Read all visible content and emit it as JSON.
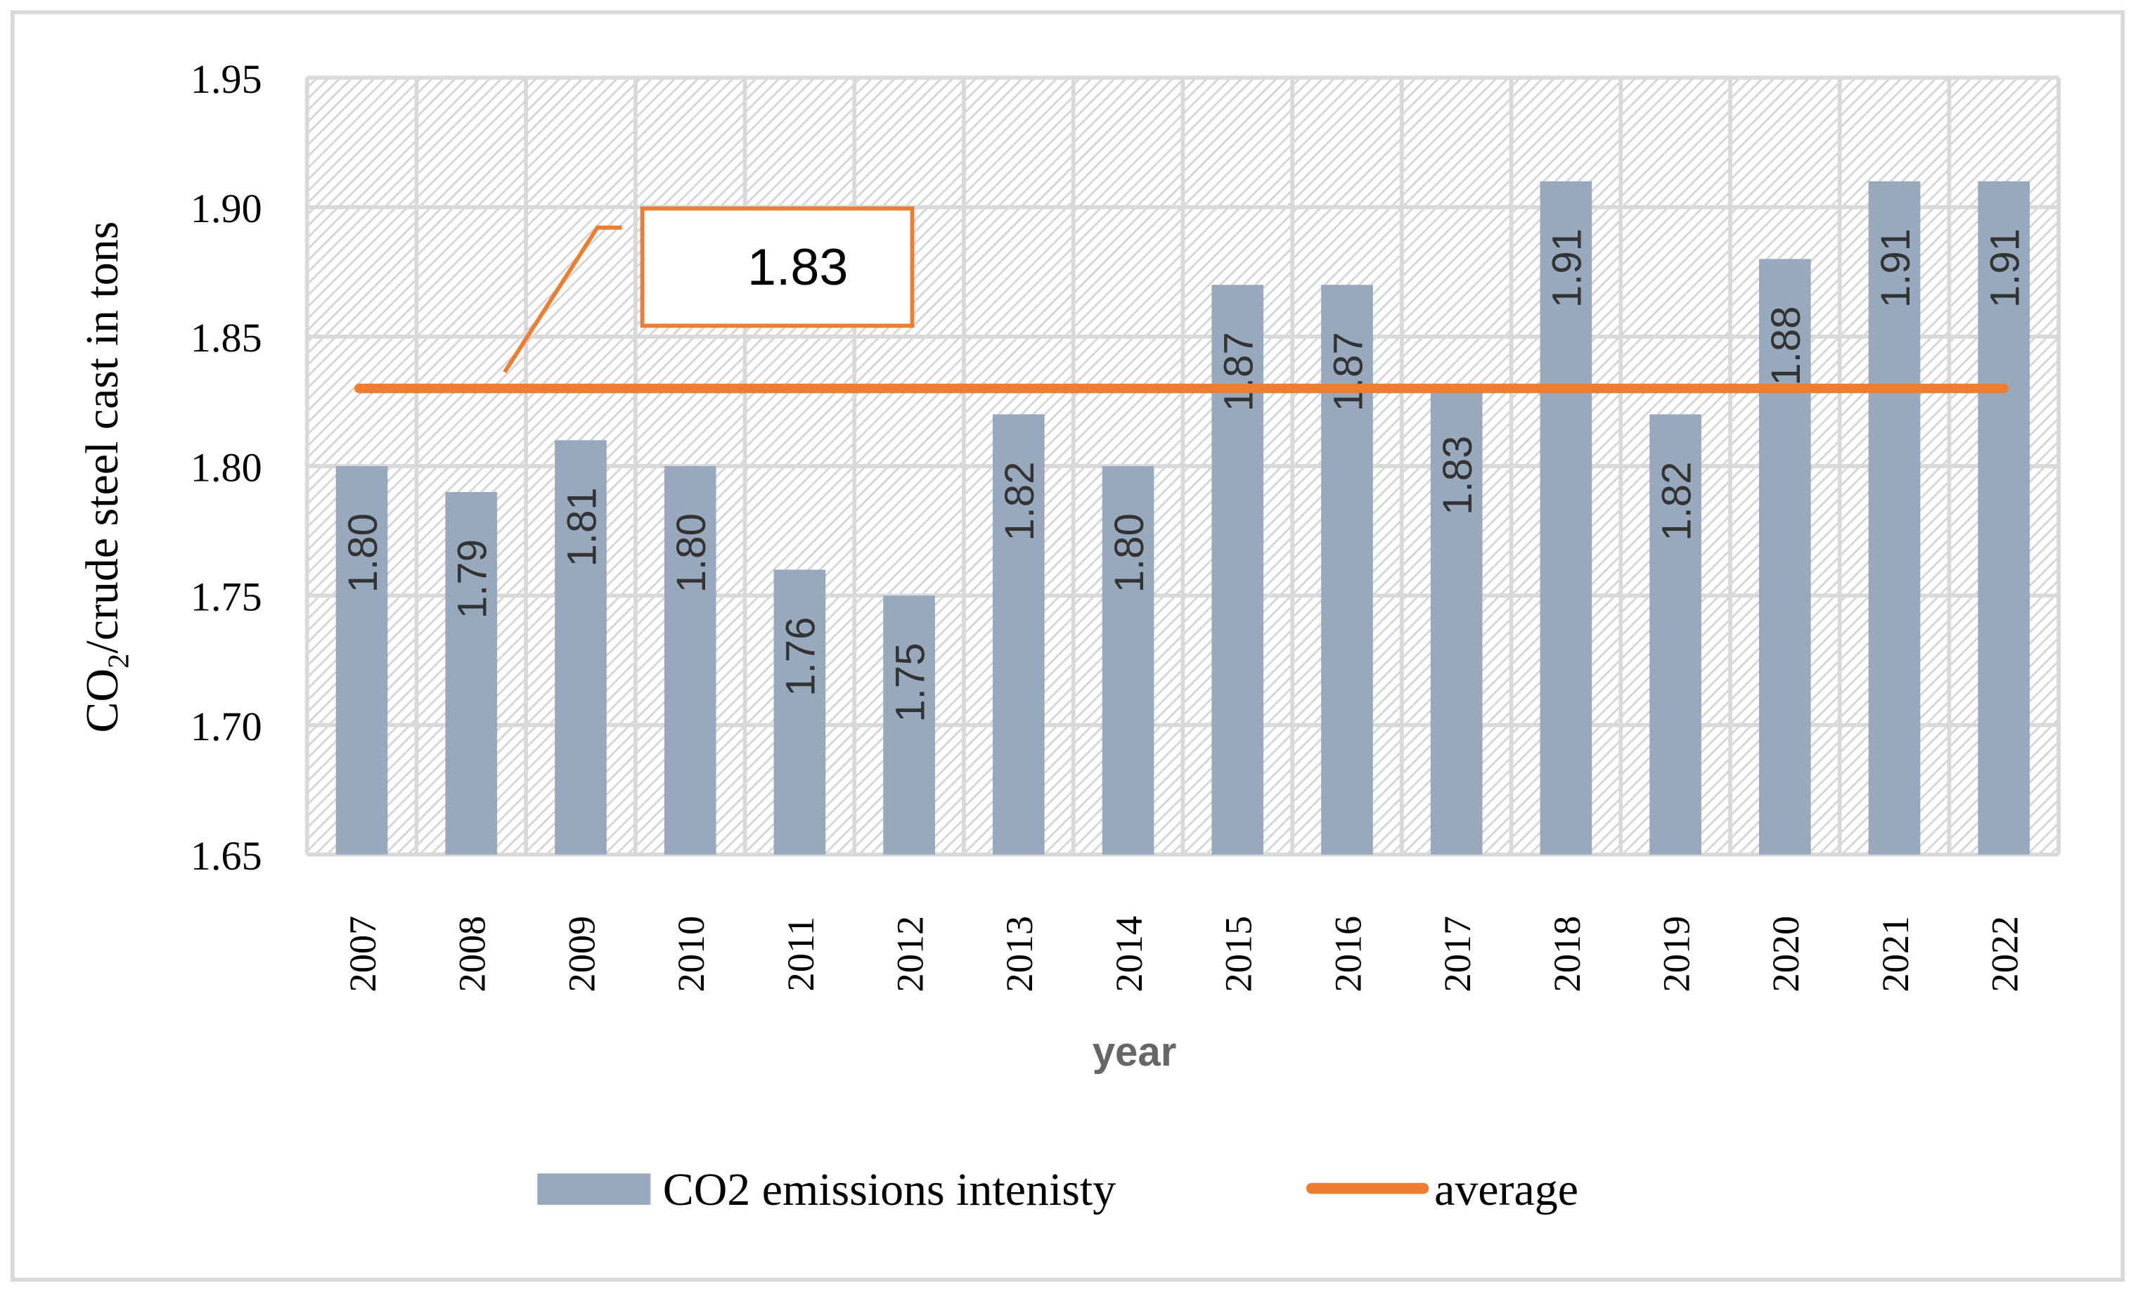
{
  "chart_data": {
    "type": "bar",
    "title": "",
    "xlabel": "year",
    "ylabel_main": "CO",
    "ylabel_sub": "2",
    "ylabel_rest": "/crude steel cast in tons",
    "ylim": [
      1.65,
      1.95
    ],
    "yticks": [
      "1.65",
      "1.70",
      "1.75",
      "1.80",
      "1.85",
      "1.90",
      "1.95"
    ],
    "grid": true,
    "legend_position": "bottom",
    "categories": [
      "2007",
      "2008",
      "2009",
      "2010",
      "2011",
      "2012",
      "2013",
      "2014",
      "2015",
      "2016",
      "2017",
      "2018",
      "2019",
      "2020",
      "2021",
      "2022"
    ],
    "series": [
      {
        "name": "CO2 emissions intenisty",
        "type": "bar",
        "color": "#98a9be",
        "values": [
          1.8,
          1.79,
          1.81,
          1.8,
          1.76,
          1.75,
          1.82,
          1.8,
          1.87,
          1.87,
          1.83,
          1.91,
          1.82,
          1.88,
          1.91,
          1.91
        ],
        "labels": [
          "1.80",
          "1.79",
          "1.81",
          "1.80",
          "1.76",
          "1.75",
          "1.82",
          "1.80",
          "1.87",
          "1.87",
          "1.83",
          "1.91",
          "1.82",
          "1.88",
          "1.91",
          "1.91"
        ]
      },
      {
        "name": "average",
        "type": "line",
        "color": "#ed7d31",
        "value": 1.83
      }
    ],
    "annotation": {
      "text": "1.83"
    }
  }
}
